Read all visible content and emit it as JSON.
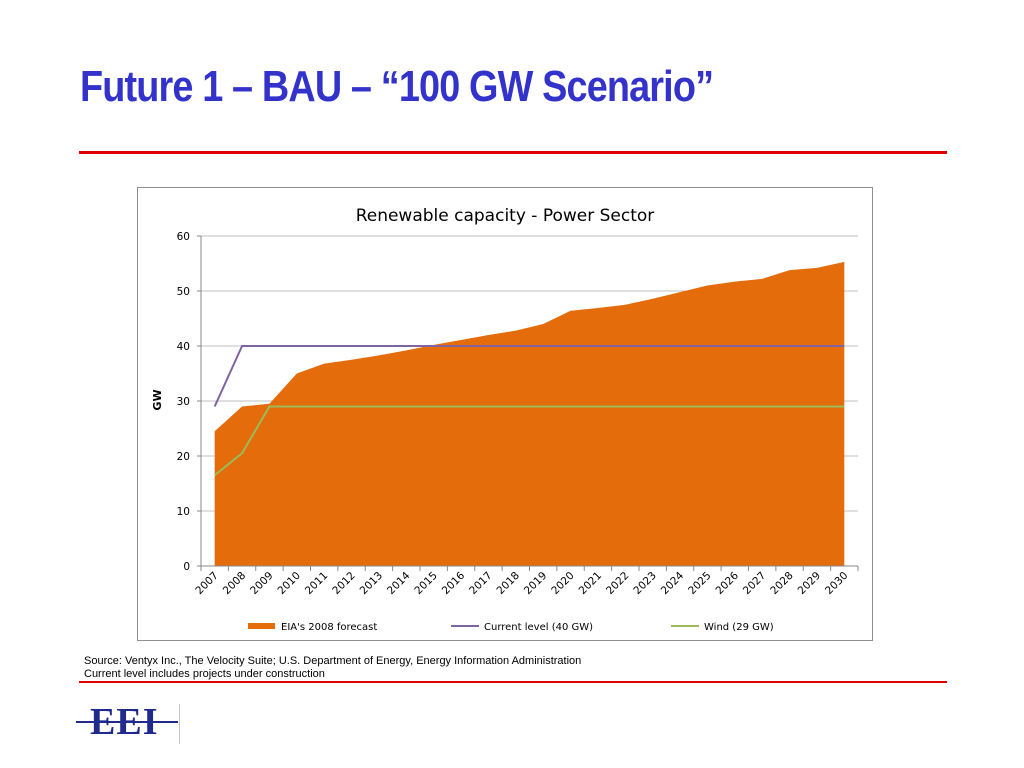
{
  "slide": {
    "title": "Future 1 – BAU – “100 GW Scenario”",
    "title_color": "#3333cc",
    "rule_color": "#e00000"
  },
  "chart_data": {
    "type": "area",
    "title": "Renewable capacity - Power Sector",
    "xlabel": "",
    "ylabel": "GW",
    "ylim": [
      0,
      60
    ],
    "yticks": [
      0,
      10,
      20,
      30,
      40,
      50,
      60
    ],
    "grid": true,
    "legend_position": "bottom",
    "x": [
      "2007",
      "2008",
      "2009",
      "2010",
      "2011",
      "2012",
      "2013",
      "2014",
      "2015",
      "2016",
      "2017",
      "2018",
      "2019",
      "2020",
      "2021",
      "2022",
      "2023",
      "2024",
      "2025",
      "2026",
      "2027",
      "2028",
      "2029",
      "2030"
    ],
    "series": [
      {
        "name": "EIA's 2008 forecast",
        "kind": "area",
        "color": "#e46c0a",
        "values": [
          24.5,
          29,
          29.5,
          35,
          36.8,
          37.5,
          38.3,
          39.2,
          40.2,
          41.1,
          42,
          42.8,
          44,
          46.4,
          46.9,
          47.5,
          48.6,
          49.8,
          51,
          51.7,
          52.2,
          53.8,
          54.2,
          55.3
        ]
      },
      {
        "name": "Current level (40 GW)",
        "kind": "line",
        "color": "#8064a2",
        "values": [
          29,
          40,
          40,
          40,
          40,
          40,
          40,
          40,
          40,
          40,
          40,
          40,
          40,
          40,
          40,
          40,
          40,
          40,
          40,
          40,
          40,
          40,
          40,
          40
        ]
      },
      {
        "name": "Wind  (29 GW)",
        "kind": "line",
        "color": "#9bbb59",
        "values": [
          16.5,
          20.5,
          29,
          29,
          29,
          29,
          29,
          29,
          29,
          29,
          29,
          29,
          29,
          29,
          29,
          29,
          29,
          29,
          29,
          29,
          29,
          29,
          29,
          29
        ]
      }
    ]
  },
  "source": {
    "line1": "Source: Ventyx Inc., The Velocity Suite; U.S. Department of Energy, Energy Information Administration",
    "line2": "Current level includes projects under construction"
  },
  "logo": {
    "text": "EEI",
    "color": "#1f2a8c"
  }
}
